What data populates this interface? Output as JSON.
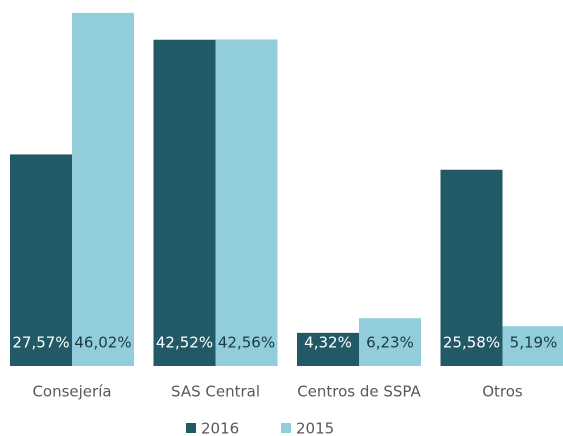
{
  "chart_data": {
    "type": "bar",
    "categories": [
      "Consejería",
      "SAS Central",
      "Centros de SSPA",
      "Otros"
    ],
    "series": [
      {
        "name": "2016",
        "color": "#215967",
        "values": [
          27.57,
          42.52,
          4.32,
          25.58
        ],
        "value_labels": [
          "27,57%",
          "42,52%",
          "4,32%",
          "25,58%"
        ]
      },
      {
        "name": "2015",
        "color": "#92cddc",
        "values": [
          46.02,
          42.56,
          6.23,
          5.19
        ],
        "value_labels": [
          "46,02%",
          "42,56%",
          "6,23%",
          "5,19%"
        ]
      }
    ],
    "ylim": [
      0,
      47.7
    ],
    "legend": "bottom"
  }
}
